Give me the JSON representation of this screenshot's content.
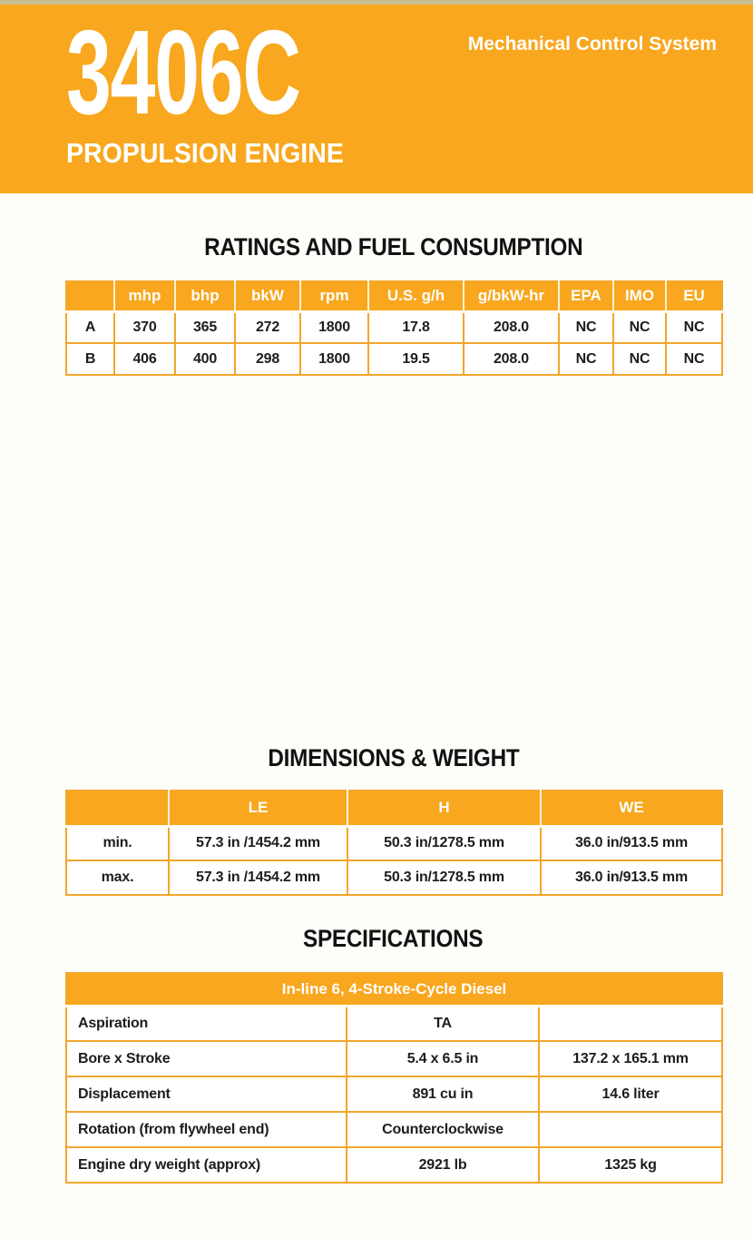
{
  "banner": {
    "model": "3406C",
    "subtitle": "Mechanical Control System",
    "product_line": "PROPULSION ENGINE"
  },
  "colors": {
    "brand_yellow": "#F8A71E",
    "table_border": "#F2A62C",
    "top_strip": "#C8BD92",
    "text_ink": "#1D1D1D"
  },
  "sections": {
    "ratings": {
      "title": "RATINGS AND FUEL CONSUMPTION",
      "columns": [
        "",
        "mhp",
        "bhp",
        "bkW",
        "rpm",
        "U.S. g/h",
        "g/bkW-hr",
        "EPA",
        "IMO",
        "EU"
      ],
      "rows": [
        {
          "label": "A",
          "values": [
            "370",
            "365",
            "272",
            "1800",
            "17.8",
            "208.0",
            "NC",
            "NC",
            "NC"
          ]
        },
        {
          "label": "B",
          "values": [
            "406",
            "400",
            "298",
            "1800",
            "19.5",
            "208.0",
            "NC",
            "NC",
            "NC"
          ]
        }
      ]
    },
    "dimensions": {
      "title": "DIMENSIONS & WEIGHT",
      "columns": [
        "",
        "LE",
        "H",
        "WE"
      ],
      "rows": [
        {
          "label": "min.",
          "values": [
            "57.3 in /1454.2 mm",
            "50.3 in/1278.5 mm",
            "36.0 in/913.5 mm"
          ]
        },
        {
          "label": "max.",
          "values": [
            "57.3 in /1454.2 mm",
            "50.3 in/1278.5 mm",
            "36.0 in/913.5 mm"
          ]
        }
      ]
    },
    "specifications": {
      "title": "SPECIFICATIONS",
      "header": "In-line 6, 4-Stroke-Cycle Diesel",
      "rows": [
        {
          "label": "Aspiration",
          "values": [
            "TA",
            ""
          ]
        },
        {
          "label": "Bore x Stroke",
          "values": [
            "5.4 x 6.5 in",
            "137.2 x 165.1 mm"
          ]
        },
        {
          "label": "Displacement",
          "values": [
            "891 cu in",
            "14.6 liter"
          ]
        },
        {
          "label": "Rotation (from flywheel end)",
          "values": [
            "Counterclockwise",
            ""
          ]
        },
        {
          "label": "Engine dry weight (approx)",
          "values": [
            "2921 lb",
            "1325 kg"
          ]
        }
      ]
    }
  }
}
